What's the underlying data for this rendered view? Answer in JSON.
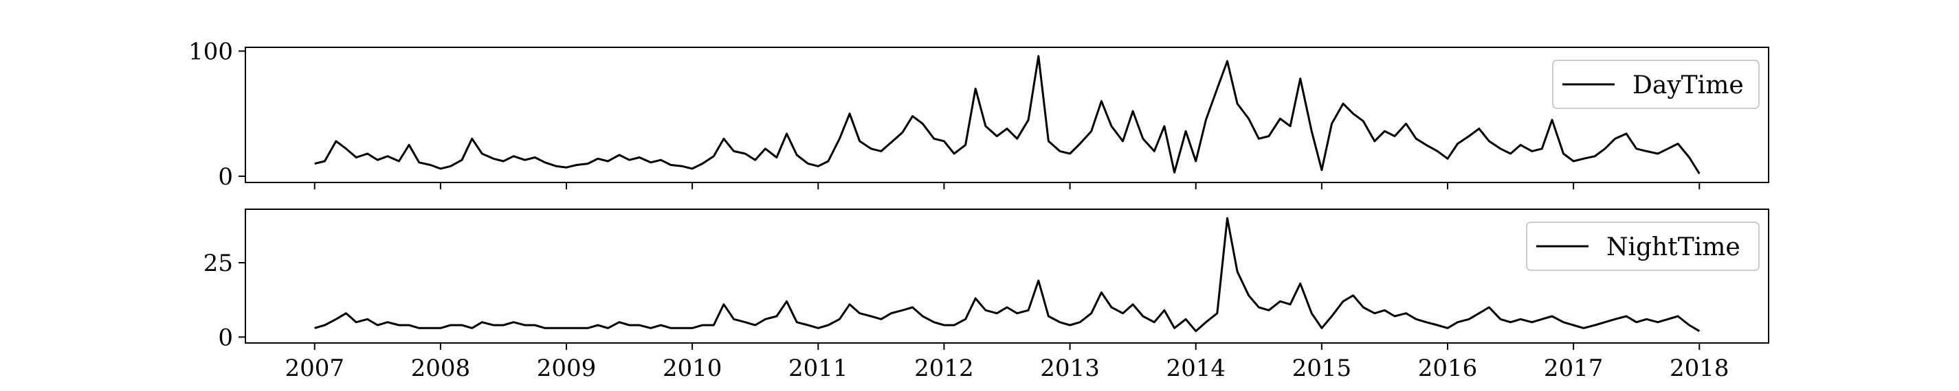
{
  "chart_data": [
    {
      "type": "line",
      "title": "",
      "xlabel": "",
      "ylabel": "",
      "xlim": [
        2006.45,
        2018.55
      ],
      "ylim": [
        -5,
        103
      ],
      "yticks": [
        0,
        100
      ],
      "xtick_labels_shown": false,
      "line_color": "#000000",
      "legend": {
        "position": "top-right",
        "entries": [
          "DayTime"
        ]
      },
      "series": [
        {
          "name": "DayTime",
          "x": [
            2007.0,
            2007.08,
            2007.17,
            2007.25,
            2007.33,
            2007.42,
            2007.5,
            2007.58,
            2007.67,
            2007.75,
            2007.83,
            2007.92,
            2008.0,
            2008.08,
            2008.17,
            2008.25,
            2008.33,
            2008.42,
            2008.5,
            2008.58,
            2008.67,
            2008.75,
            2008.83,
            2008.92,
            2009.0,
            2009.08,
            2009.17,
            2009.25,
            2009.33,
            2009.42,
            2009.5,
            2009.58,
            2009.67,
            2009.75,
            2009.83,
            2009.92,
            2010.0,
            2010.08,
            2010.17,
            2010.25,
            2010.33,
            2010.42,
            2010.5,
            2010.58,
            2010.67,
            2010.75,
            2010.83,
            2010.92,
            2011.0,
            2011.08,
            2011.17,
            2011.25,
            2011.33,
            2011.42,
            2011.5,
            2011.58,
            2011.67,
            2011.75,
            2011.83,
            2011.92,
            2012.0,
            2012.08,
            2012.17,
            2012.25,
            2012.33,
            2012.42,
            2012.5,
            2012.58,
            2012.67,
            2012.75,
            2012.83,
            2012.92,
            2013.0,
            2013.08,
            2013.17,
            2013.25,
            2013.33,
            2013.42,
            2013.5,
            2013.58,
            2013.67,
            2013.75,
            2013.83,
            2013.92,
            2014.0,
            2014.08,
            2014.17,
            2014.25,
            2014.33,
            2014.42,
            2014.5,
            2014.58,
            2014.67,
            2014.75,
            2014.83,
            2014.92,
            2015.0,
            2015.08,
            2015.17,
            2015.25,
            2015.33,
            2015.42,
            2015.5,
            2015.58,
            2015.67,
            2015.75,
            2015.83,
            2015.92,
            2016.0,
            2016.08,
            2016.17,
            2016.25,
            2016.33,
            2016.42,
            2016.5,
            2016.58,
            2016.67,
            2016.75,
            2016.83,
            2016.92,
            2017.0,
            2017.08,
            2017.17,
            2017.25,
            2017.33,
            2017.42,
            2017.5,
            2017.58,
            2017.67,
            2017.75,
            2017.83,
            2017.92,
            2018.0
          ],
          "y": [
            10,
            12,
            28,
            22,
            15,
            18,
            13,
            16,
            12,
            25,
            11,
            9,
            6,
            8,
            13,
            30,
            18,
            14,
            12,
            16,
            13,
            15,
            11,
            8,
            7,
            9,
            10,
            14,
            12,
            17,
            13,
            15,
            11,
            13,
            9,
            8,
            6,
            10,
            16,
            30,
            20,
            18,
            13,
            22,
            15,
            34,
            17,
            10,
            8,
            12,
            30,
            50,
            28,
            22,
            20,
            27,
            35,
            48,
            42,
            30,
            28,
            18,
            25,
            70,
            40,
            32,
            38,
            30,
            45,
            96,
            28,
            20,
            18,
            26,
            36,
            60,
            40,
            28,
            52,
            30,
            20,
            40,
            3,
            36,
            12,
            45,
            70,
            92,
            58,
            46,
            30,
            32,
            46,
            40,
            78,
            36,
            5,
            42,
            58,
            50,
            44,
            28,
            36,
            32,
            42,
            30,
            25,
            20,
            14,
            26,
            32,
            38,
            28,
            22,
            18,
            25,
            20,
            22,
            45,
            18,
            12,
            14,
            16,
            22,
            30,
            34,
            22,
            20,
            18,
            22,
            26,
            15,
            2
          ]
        }
      ]
    },
    {
      "type": "line",
      "title": "",
      "xlabel": "",
      "ylabel": "",
      "xlim": [
        2006.45,
        2018.55
      ],
      "ylim": [
        -2,
        43
      ],
      "yticks": [
        0,
        25
      ],
      "xticks": [
        "2007",
        "2008",
        "2009",
        "2010",
        "2011",
        "2012",
        "2013",
        "2014",
        "2015",
        "2016",
        "2017",
        "2018"
      ],
      "line_color": "#000000",
      "legend": {
        "position": "top-right",
        "entries": [
          "NightTime"
        ]
      },
      "series": [
        {
          "name": "NightTime",
          "x": [
            2007.0,
            2007.08,
            2007.17,
            2007.25,
            2007.33,
            2007.42,
            2007.5,
            2007.58,
            2007.67,
            2007.75,
            2007.83,
            2007.92,
            2008.0,
            2008.08,
            2008.17,
            2008.25,
            2008.33,
            2008.42,
            2008.5,
            2008.58,
            2008.67,
            2008.75,
            2008.83,
            2008.92,
            2009.0,
            2009.08,
            2009.17,
            2009.25,
            2009.33,
            2009.42,
            2009.5,
            2009.58,
            2009.67,
            2009.75,
            2009.83,
            2009.92,
            2010.0,
            2010.08,
            2010.17,
            2010.25,
            2010.33,
            2010.42,
            2010.5,
            2010.58,
            2010.67,
            2010.75,
            2010.83,
            2010.92,
            2011.0,
            2011.08,
            2011.17,
            2011.25,
            2011.33,
            2011.42,
            2011.5,
            2011.58,
            2011.67,
            2011.75,
            2011.83,
            2011.92,
            2012.0,
            2012.08,
            2012.17,
            2012.25,
            2012.33,
            2012.42,
            2012.5,
            2012.58,
            2012.67,
            2012.75,
            2012.83,
            2012.92,
            2013.0,
            2013.08,
            2013.17,
            2013.25,
            2013.33,
            2013.42,
            2013.5,
            2013.58,
            2013.67,
            2013.75,
            2013.83,
            2013.92,
            2014.0,
            2014.08,
            2014.17,
            2014.25,
            2014.33,
            2014.42,
            2014.5,
            2014.58,
            2014.67,
            2014.75,
            2014.83,
            2014.92,
            2015.0,
            2015.08,
            2015.17,
            2015.25,
            2015.33,
            2015.42,
            2015.5,
            2015.58,
            2015.67,
            2015.75,
            2015.83,
            2015.92,
            2016.0,
            2016.08,
            2016.17,
            2016.25,
            2016.33,
            2016.42,
            2016.5,
            2016.58,
            2016.67,
            2016.75,
            2016.83,
            2016.92,
            2017.0,
            2017.08,
            2017.17,
            2017.25,
            2017.33,
            2017.42,
            2017.5,
            2017.58,
            2017.67,
            2017.75,
            2017.83,
            2017.92,
            2018.0
          ],
          "y": [
            3,
            4,
            6,
            8,
            5,
            6,
            4,
            5,
            4,
            4,
            3,
            3,
            3,
            4,
            4,
            3,
            5,
            4,
            4,
            5,
            4,
            4,
            3,
            3,
            3,
            3,
            3,
            4,
            3,
            5,
            4,
            4,
            3,
            4,
            3,
            3,
            3,
            4,
            4,
            11,
            6,
            5,
            4,
            6,
            7,
            12,
            5,
            4,
            3,
            4,
            6,
            11,
            8,
            7,
            6,
            8,
            9,
            10,
            7,
            5,
            4,
            4,
            6,
            13,
            9,
            8,
            10,
            8,
            9,
            19,
            7,
            5,
            4,
            5,
            8,
            15,
            10,
            8,
            11,
            7,
            5,
            9,
            3,
            6,
            2,
            5,
            8,
            40,
            22,
            14,
            10,
            9,
            12,
            11,
            18,
            8,
            3,
            7,
            12,
            14,
            10,
            8,
            9,
            7,
            8,
            6,
            5,
            4,
            3,
            5,
            6,
            8,
            10,
            6,
            5,
            6,
            5,
            6,
            7,
            5,
            4,
            3,
            4,
            5,
            6,
            7,
            5,
            6,
            5,
            6,
            7,
            4,
            2
          ]
        }
      ]
    }
  ]
}
